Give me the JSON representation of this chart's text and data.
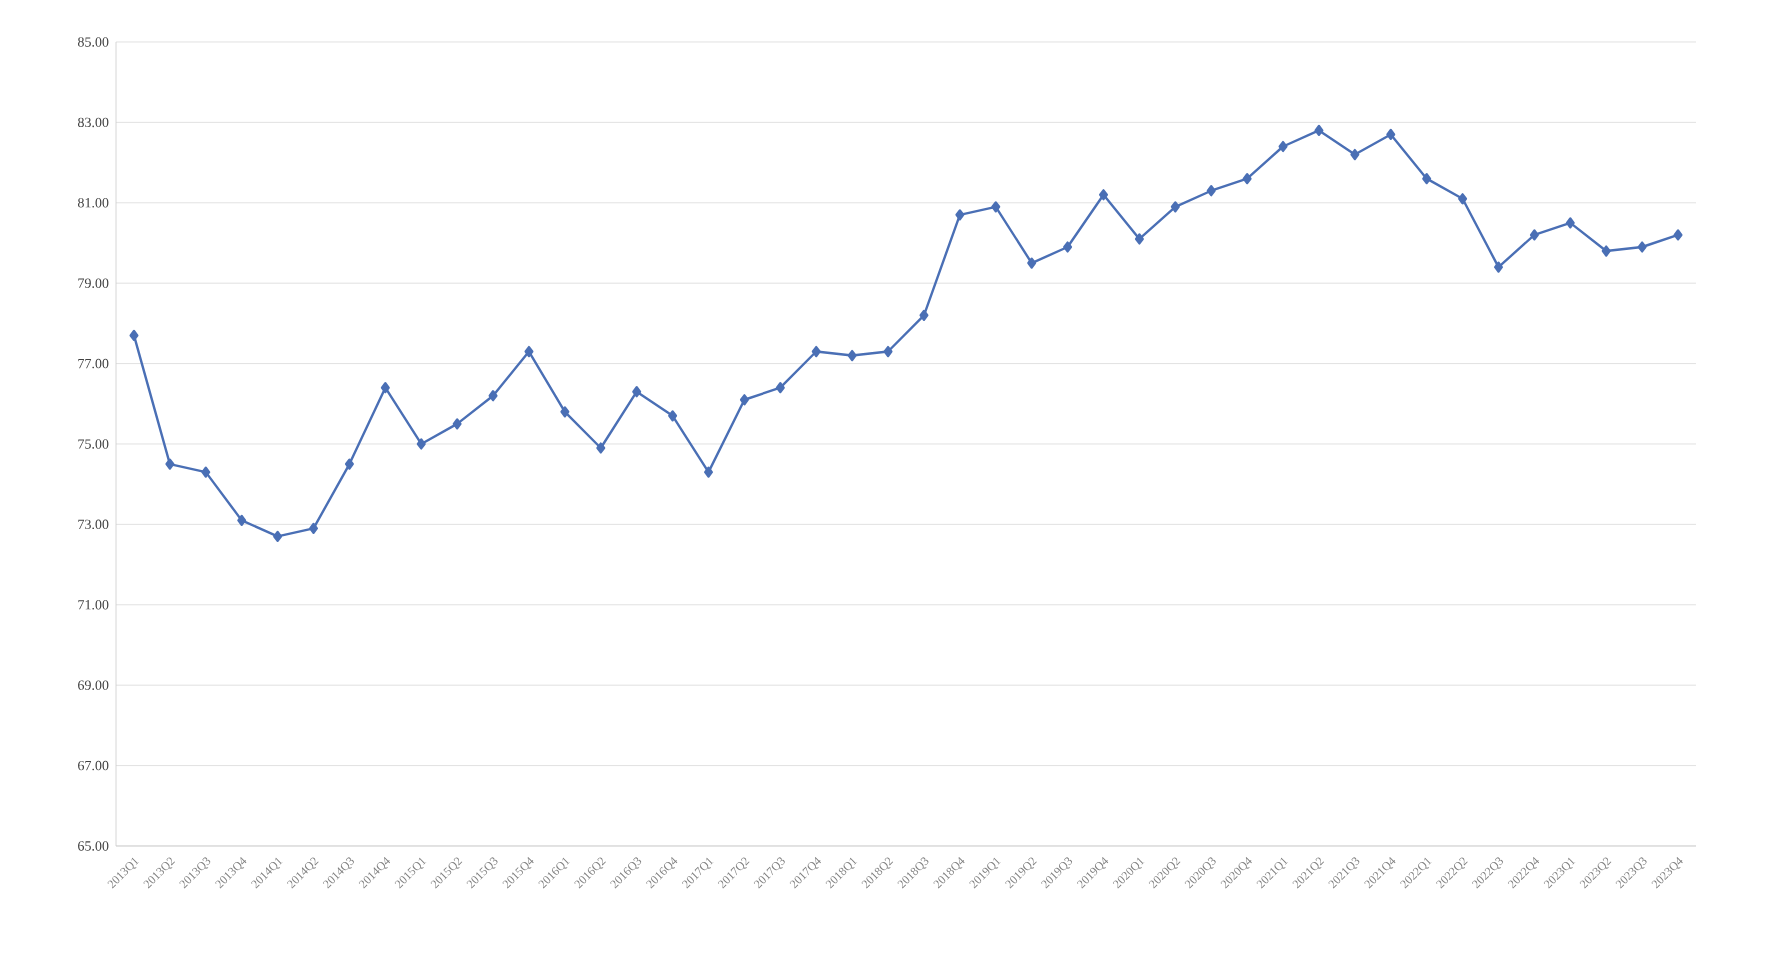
{
  "chart_data": {
    "type": "line",
    "categories": [
      "2013Q1",
      "2013Q2",
      "2013Q3",
      "2013Q4",
      "2014Q1",
      "2014Q2",
      "2014Q3",
      "2014Q4",
      "2015Q1",
      "2015Q2",
      "2015Q3",
      "2015Q4",
      "2016Q1",
      "2016Q2",
      "2016Q3",
      "2016Q4",
      "2017Q1",
      "2017Q2",
      "2017Q3",
      "2017Q4",
      "2018Q1",
      "2018Q2",
      "2018Q3",
      "2018Q4",
      "2019Q1",
      "2019Q2",
      "2019Q3",
      "2019Q4",
      "2020Q1",
      "2020Q2",
      "2020Q3",
      "2020Q4",
      "2021Q1",
      "2021Q2",
      "2021Q3",
      "2021Q4",
      "2022Q1",
      "2022Q2",
      "2022Q3",
      "2022Q4",
      "2023Q1",
      "2023Q2",
      "2023Q3",
      "2023Q4"
    ],
    "series": [
      {
        "color": "#4a6fb5",
        "values": [
          77.7,
          74.5,
          74.3,
          73.1,
          72.7,
          72.9,
          74.5,
          76.4,
          75.0,
          75.5,
          76.2,
          77.3,
          75.8,
          74.9,
          76.3,
          75.7,
          74.3,
          76.1,
          76.4,
          77.3,
          77.2,
          77.3,
          78.2,
          80.7,
          80.9,
          79.5,
          79.9,
          81.2,
          80.1,
          80.9,
          81.3,
          81.6,
          82.4,
          82.8,
          82.2,
          82.7,
          81.6,
          81.1,
          79.4,
          80.2,
          80.5,
          79.8,
          79.9,
          80.2
        ]
      }
    ],
    "ylim": [
      65,
      85
    ],
    "yticks": [
      {
        "value": 65,
        "label": "65.00"
      },
      {
        "value": 67,
        "label": "67.00"
      },
      {
        "value": 69,
        "label": "69.00"
      },
      {
        "value": 71,
        "label": "71.00"
      },
      {
        "value": 73,
        "label": "73.00"
      },
      {
        "value": 75,
        "label": "75.00"
      },
      {
        "value": 77,
        "label": "77.00"
      },
      {
        "value": 79,
        "label": "79.00"
      },
      {
        "value": 81,
        "label": "81.00"
      },
      {
        "value": 83,
        "label": "83.00"
      },
      {
        "value": 85,
        "label": "85.00"
      }
    ],
    "grid": "y",
    "marker": "diamond",
    "line_style": "solid"
  }
}
